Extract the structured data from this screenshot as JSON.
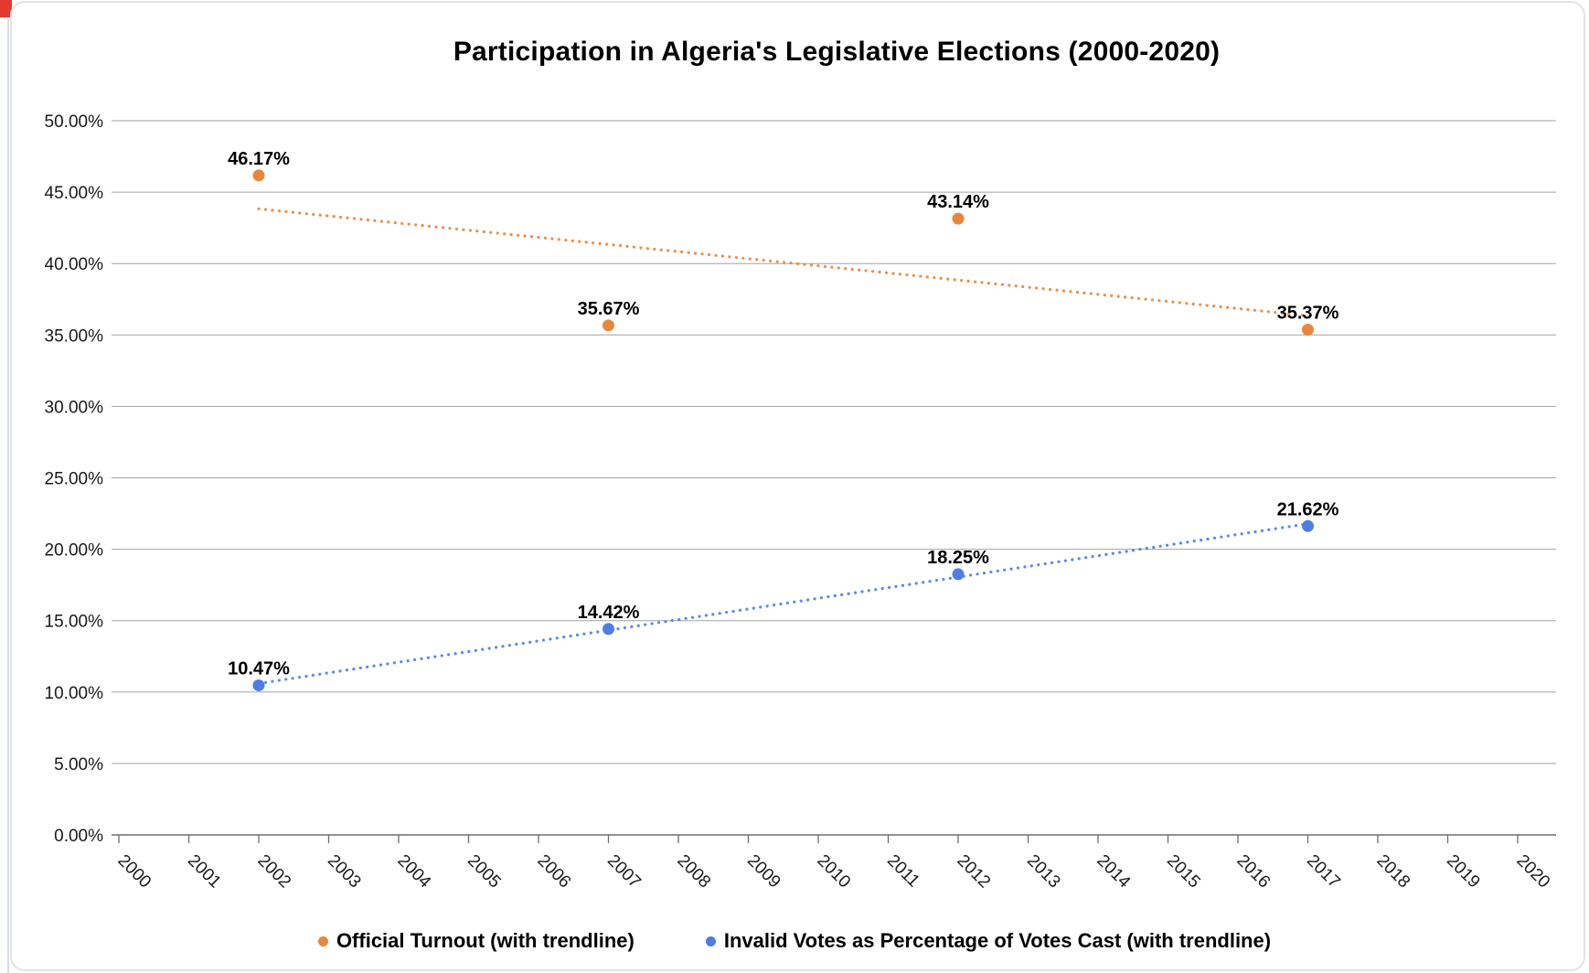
{
  "chart_data": {
    "type": "scatter",
    "title": "Participation in Algeria's Legislative Elections (2000-2020)",
    "x_range": [
      2000,
      2020
    ],
    "y_range": [
      0,
      50
    ],
    "grid": true,
    "legend_position": "bottom",
    "grid_color": "#a3a3a3",
    "axis_color": "#6e6e6e",
    "tick_label_color": "#1a1a1a",
    "data_label_color": "#000000",
    "x_ticks": [
      "2000",
      "2001",
      "2002",
      "2003",
      "2004",
      "2005",
      "2006",
      "2007",
      "2008",
      "2009",
      "2010",
      "2011",
      "2012",
      "2013",
      "2014",
      "2015",
      "2016",
      "2017",
      "2018",
      "2019",
      "2020"
    ],
    "y_ticks": [
      {
        "value": 50,
        "label": "50.00%"
      },
      {
        "value": 45,
        "label": "45.00%"
      },
      {
        "value": 40,
        "label": "40.00%"
      },
      {
        "value": 35,
        "label": "35.00%"
      },
      {
        "value": 30,
        "label": "30.00%"
      },
      {
        "value": 25,
        "label": "25.00%"
      },
      {
        "value": 20,
        "label": "20.00%"
      },
      {
        "value": 15,
        "label": "15.00%"
      },
      {
        "value": 10,
        "label": "10.00%"
      },
      {
        "value": 5,
        "label": "5.00%"
      },
      {
        "value": 0,
        "label": "0.00%"
      }
    ],
    "series": [
      {
        "name": "Official Turnout (with trendline)",
        "color": "#e7873d",
        "points": [
          {
            "x": 2002,
            "y": 46.17,
            "label": "46.17%"
          },
          {
            "x": 2007,
            "y": 35.67,
            "label": "35.67%"
          },
          {
            "x": 2012,
            "y": 43.14,
            "label": "43.14%"
          },
          {
            "x": 2017,
            "y": 35.37,
            "label": "35.37%"
          }
        ],
        "trendline": {
          "x1": 2002,
          "y1": 43.83,
          "x2": 2017,
          "y2": 36.35
        }
      },
      {
        "name": "Invalid Votes as Percentage of Votes Cast (with trendline)",
        "color": "#4e7ee3",
        "points": [
          {
            "x": 2002,
            "y": 10.47,
            "label": "10.47%"
          },
          {
            "x": 2007,
            "y": 14.42,
            "label": "14.42%"
          },
          {
            "x": 2012,
            "y": 18.25,
            "label": "18.25%"
          },
          {
            "x": 2017,
            "y": 21.62,
            "label": "21.62%"
          }
        ],
        "trendline": {
          "x1": 2002,
          "y1": 10.6,
          "x2": 2017,
          "y2": 21.78
        }
      }
    ]
  },
  "artifacts": {
    "corner_marker_color": "#e23b2e"
  }
}
